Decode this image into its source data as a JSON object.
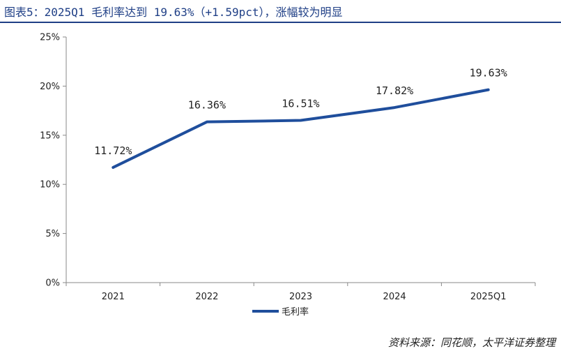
{
  "header": {
    "title": "图表5：2025Q1 毛利率达到 19.63%（+1.59pct），涨幅较为明显"
  },
  "footer": {
    "source": "资料来源：同花顺，太平洋证券整理"
  },
  "chart_data": {
    "type": "line",
    "title": "图表5：2025Q1 毛利率达到 19.63%（+1.59pct），涨幅较为明显",
    "categories": [
      "2021",
      "2022",
      "2023",
      "2024",
      "2025Q1"
    ],
    "series": [
      {
        "name": "毛利率",
        "values": [
          11.72,
          16.36,
          16.51,
          17.82,
          19.63
        ],
        "labels": [
          "11.72%",
          "16.36%",
          "16.51%",
          "17.82%",
          "19.63%"
        ],
        "color": "#1f4e9c"
      }
    ],
    "yticks": [
      "0%",
      "5%",
      "10%",
      "15%",
      "20%",
      "25%"
    ],
    "ytick_values": [
      0,
      5,
      10,
      15,
      20,
      25
    ],
    "ylim": [
      0,
      25
    ],
    "xlabel": "",
    "ylabel": "",
    "grid": false,
    "legend": "bottom-center"
  }
}
